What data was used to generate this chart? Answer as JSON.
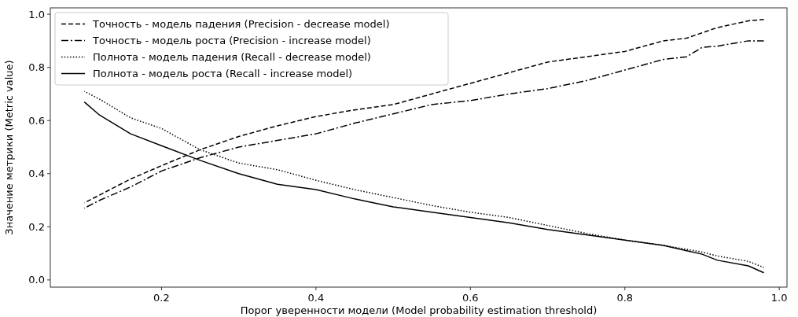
{
  "chart_data": {
    "type": "line",
    "xlabel": "Порог уверенности модели (Model probability estimation threshold)",
    "ylabel": "Значение метрики (Metric value)",
    "x": [
      0.1,
      0.12,
      0.16,
      0.2,
      0.25,
      0.3,
      0.35,
      0.4,
      0.45,
      0.5,
      0.55,
      0.6,
      0.65,
      0.7,
      0.75,
      0.8,
      0.85,
      0.88,
      0.9,
      0.92,
      0.96,
      0.98
    ],
    "series": [
      {
        "name": "Точность - модель падения (Precision - decrease model)",
        "color": "#000000",
        "line_style": "dashed",
        "values": [
          0.29,
          0.32,
          0.38,
          0.43,
          0.49,
          0.54,
          0.58,
          0.615,
          0.64,
          0.66,
          0.7,
          0.74,
          0.78,
          0.82,
          0.84,
          0.86,
          0.9,
          0.91,
          0.93,
          0.95,
          0.975,
          0.98
        ]
      },
      {
        "name": "Точность - модель роста (Precision - increase model)",
        "color": "#000000",
        "line_style": "dashdot",
        "values": [
          0.27,
          0.3,
          0.35,
          0.41,
          0.46,
          0.5,
          0.525,
          0.55,
          0.59,
          0.625,
          0.66,
          0.675,
          0.7,
          0.72,
          0.75,
          0.79,
          0.83,
          0.84,
          0.875,
          0.88,
          0.9,
          0.9
        ]
      },
      {
        "name": "Полнота - модель падения (Recall - decrease model)",
        "color": "#000000",
        "line_style": "dotted",
        "values": [
          0.71,
          0.68,
          0.61,
          0.57,
          0.49,
          0.44,
          0.415,
          0.375,
          0.34,
          0.31,
          0.28,
          0.255,
          0.235,
          0.205,
          0.175,
          0.15,
          0.13,
          0.115,
          0.105,
          0.09,
          0.07,
          0.047
        ]
      },
      {
        "name": "Полнота - модель роста (Recall - increase model)",
        "color": "#000000",
        "line_style": "solid",
        "values": [
          0.67,
          0.62,
          0.55,
          0.505,
          0.45,
          0.4,
          0.36,
          0.34,
          0.305,
          0.275,
          0.255,
          0.235,
          0.215,
          0.19,
          0.17,
          0.15,
          0.13,
          0.11,
          0.097,
          0.074,
          0.053,
          0.027
        ]
      }
    ],
    "xlim": [
      0.056,
      1.01
    ],
    "ylim": [
      -0.027,
      1.024
    ],
    "xticks": [
      0.2,
      0.4,
      0.6,
      0.8,
      {
        "value": 1.0,
        "label": "1.0"
      }
    ],
    "yticks": [
      {
        "value": 0,
        "label": "0.0"
      },
      0.2,
      0.4,
      0.6,
      0.8,
      {
        "value": 1.0,
        "label": "1.0"
      }
    ],
    "legend": "top left",
    "grid": false,
    "marker": "none"
  }
}
